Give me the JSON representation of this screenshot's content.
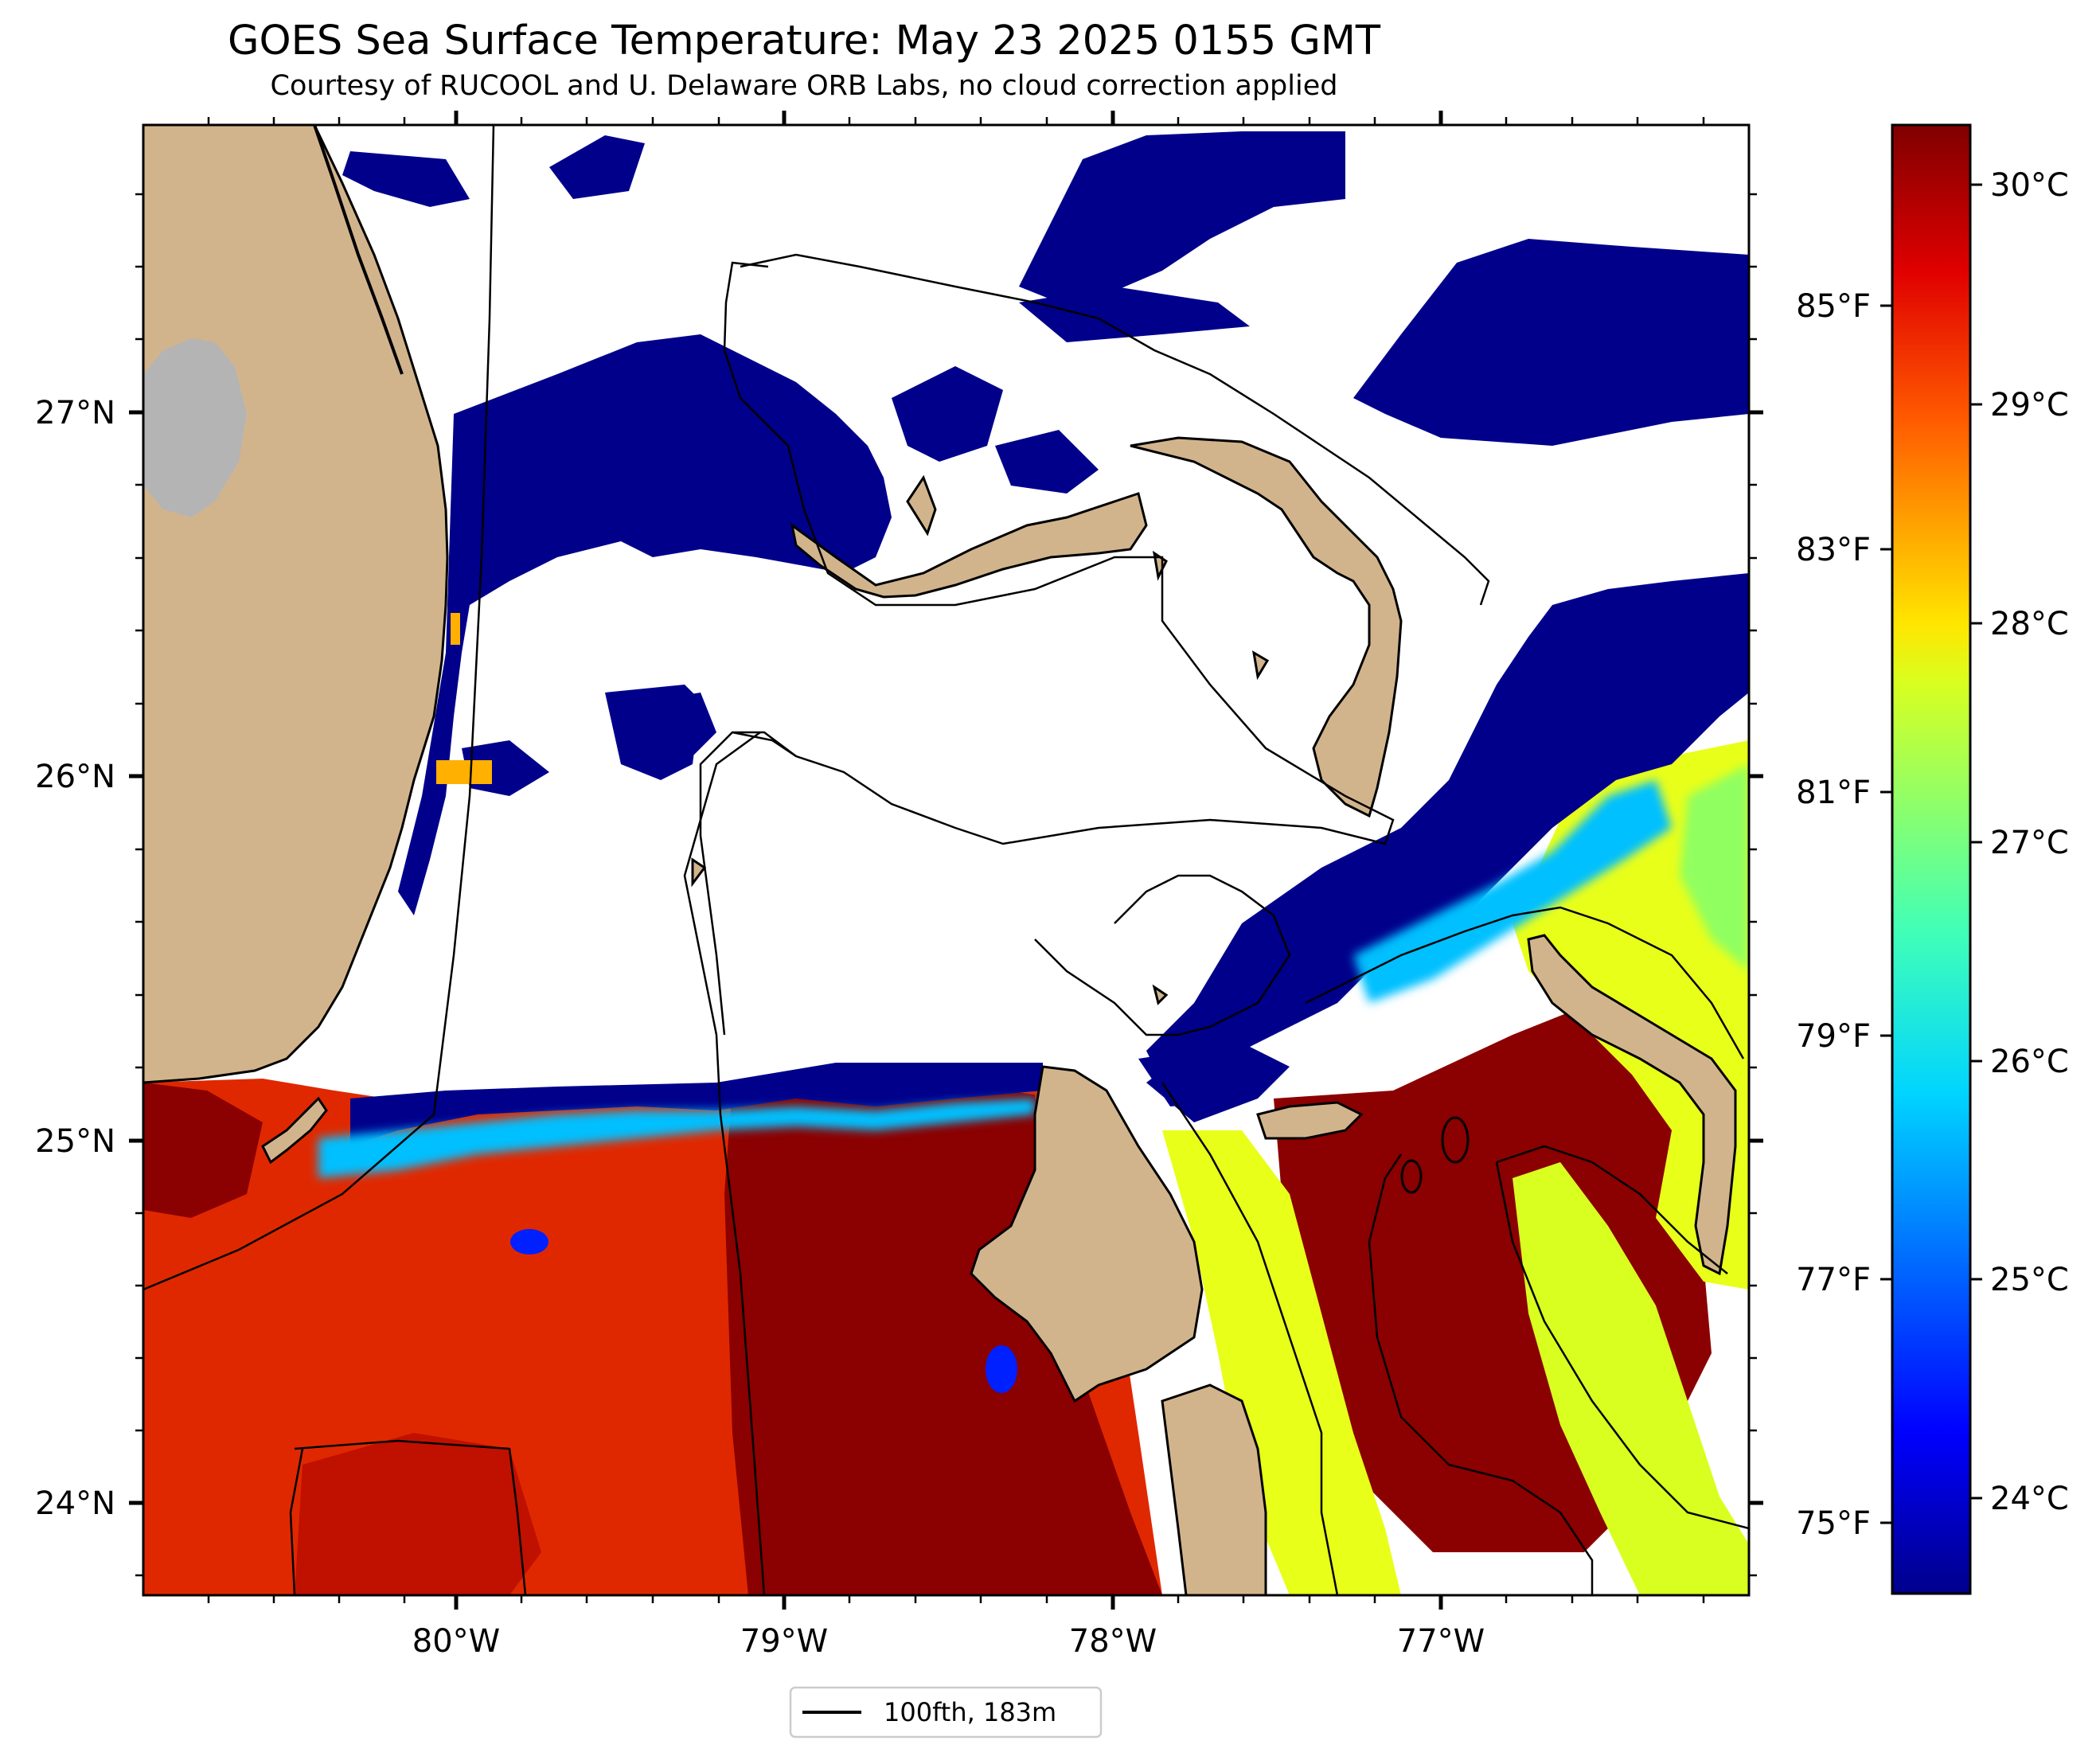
{
  "title": "GOES Sea Surface Temperature: May 23 2025 0155 GMT",
  "subtitle": "Courtesy of RUCOOL and U. Delaware ORB Labs, no cloud correction applied",
  "map": {
    "longitude_ticks": [
      "80°W",
      "79°W",
      "78°W",
      "77°W"
    ],
    "latitude_ticks": [
      "27°N",
      "26°N",
      "25°N",
      "24°N"
    ],
    "legend": {
      "label": "100fth, 183m"
    }
  },
  "colorbar": {
    "celsius_ticks": [
      "30°C",
      "29°C",
      "28°C",
      "27°C",
      "26°C",
      "25°C",
      "24°C"
    ],
    "fahrenheit_ticks": [
      "85°F",
      "83°F",
      "81°F",
      "79°F",
      "77°F",
      "75°F"
    ],
    "colormap": "jet",
    "colors": {
      "cold": "#00008b",
      "warm": "#800000"
    }
  },
  "colors": {
    "land": "#d2b48c",
    "lake": "#b4b4b4",
    "cloud": "#ffffff",
    "outline": "#000000"
  }
}
